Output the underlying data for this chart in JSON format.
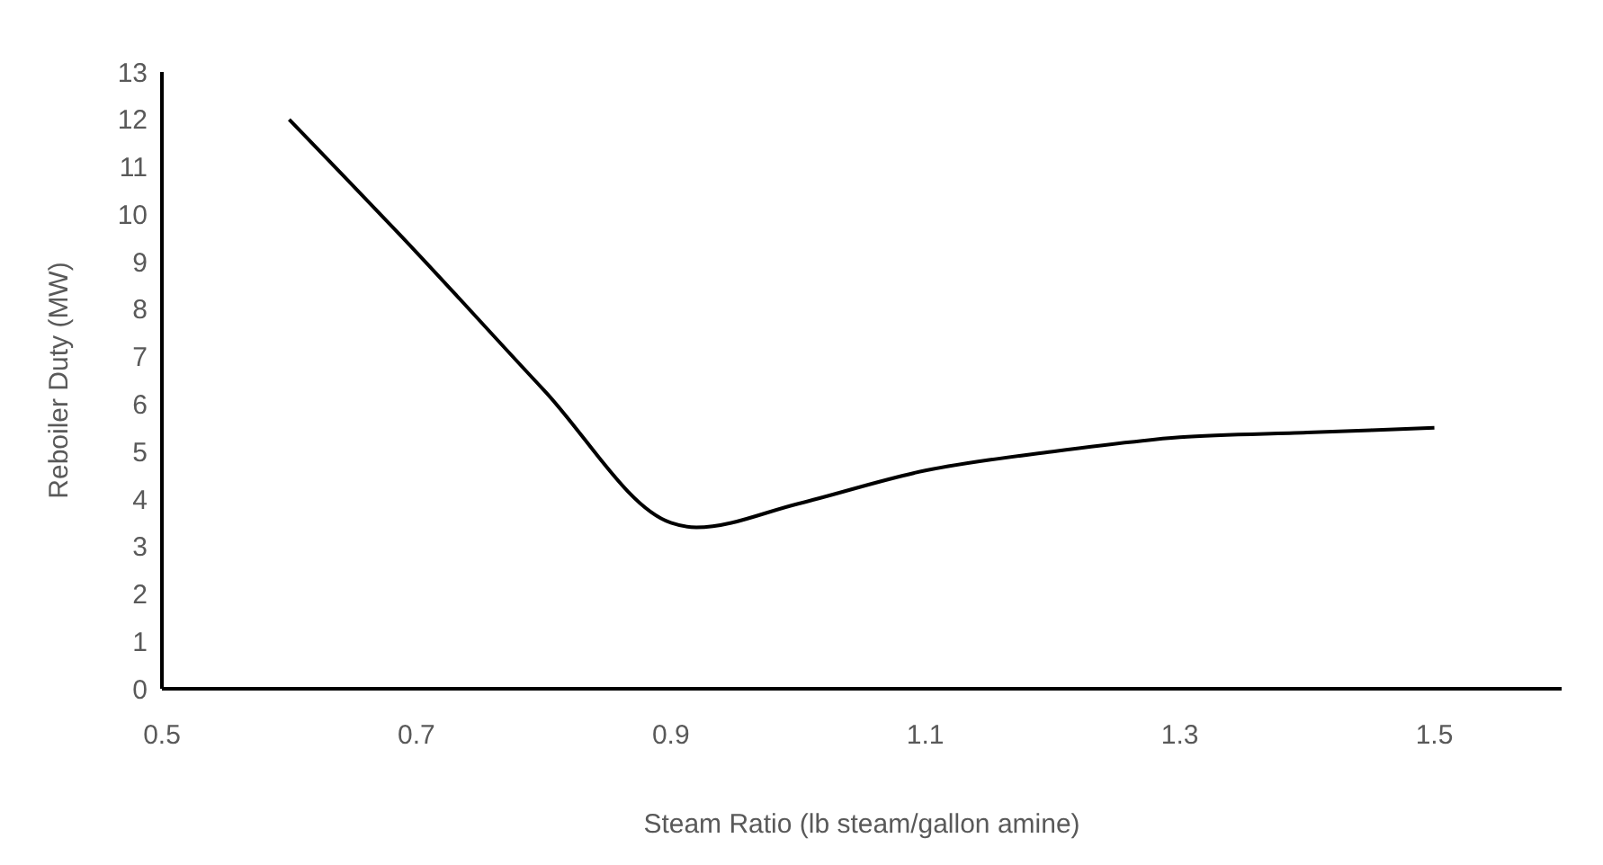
{
  "chart_data": {
    "type": "line",
    "xlabel": "Steam Ratio (lb steam/gallon amine)",
    "ylabel": "Reboiler Duty (MW)",
    "x": [
      0.6,
      0.7,
      0.8,
      0.9,
      0.92,
      1.0,
      1.1,
      1.2,
      1.3,
      1.4,
      1.5
    ],
    "series": [
      {
        "color": "#000000",
        "values": [
          12.0,
          9.2,
          6.3,
          3.5,
          3.4,
          3.9,
          4.6,
          5.0,
          5.3,
          5.4,
          5.5
        ]
      }
    ],
    "xlim": [
      0.5,
      1.6
    ],
    "xticks": [
      0.5,
      0.7,
      0.9,
      1.1,
      1.3,
      1.5
    ],
    "ylim": [
      0,
      13
    ],
    "yticks": [
      0,
      1,
      2,
      3,
      4,
      5,
      6,
      7,
      8,
      9,
      10,
      11,
      12,
      13
    ],
    "grid": false,
    "legend": false,
    "marker": "none",
    "line_style": "solid"
  }
}
